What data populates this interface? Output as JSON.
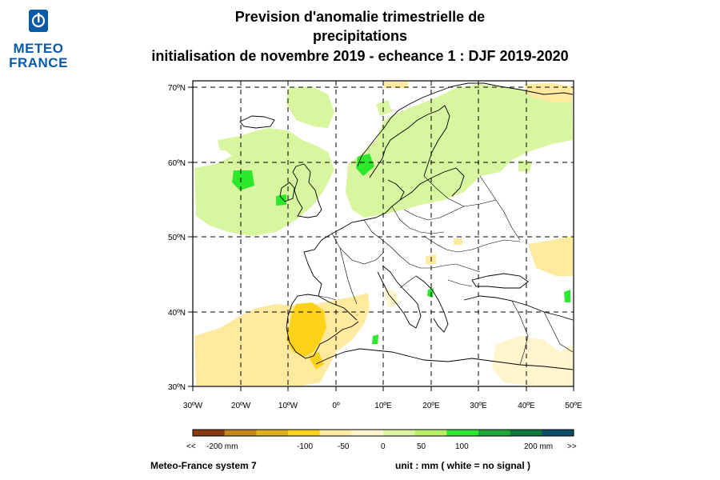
{
  "logo": {
    "line1": "METEO",
    "line2": "FRANCE"
  },
  "title": {
    "line1": "Prevision d'anomalie trimestrielle de",
    "line2": "precipitations",
    "line3": "initialisation de novembre 2019  -  echeance 1 : DJF 2019-2020"
  },
  "map": {
    "lon_range": [
      -30,
      50
    ],
    "lat_range": [
      30,
      70
    ],
    "lat_ticks": [
      "30ºN",
      "40ºN",
      "50ºN",
      "60ºN",
      "70ºN"
    ],
    "lon_ticks": [
      "30ºW",
      "20ºW",
      "10ºW",
      "0º",
      "10ºE",
      "20ºE",
      "30ºE",
      "40ºE",
      "50ºE"
    ],
    "gridlines": "dashed"
  },
  "colorbar": {
    "colors": [
      "#8b3a0e",
      "#c8861a",
      "#e0b020",
      "#ffd21a",
      "#ffeaa0",
      "#fff5cc",
      "#d8f5a0",
      "#b8f060",
      "#2ee82e",
      "#1aa83a",
      "#0b7a3a",
      "#0b4f6a"
    ],
    "labels": {
      "left_arrow": "<<",
      "m200": "-200 mm",
      "m100": "-100",
      "m50": "-50",
      "zero": "0",
      "p50": "50",
      "p100": "100",
      "p200": "200 mm",
      "right_arrow": ">>"
    }
  },
  "footer": {
    "left": "Meteo-France system 7",
    "right": "unit :  mm   ( white = no signal )"
  }
}
